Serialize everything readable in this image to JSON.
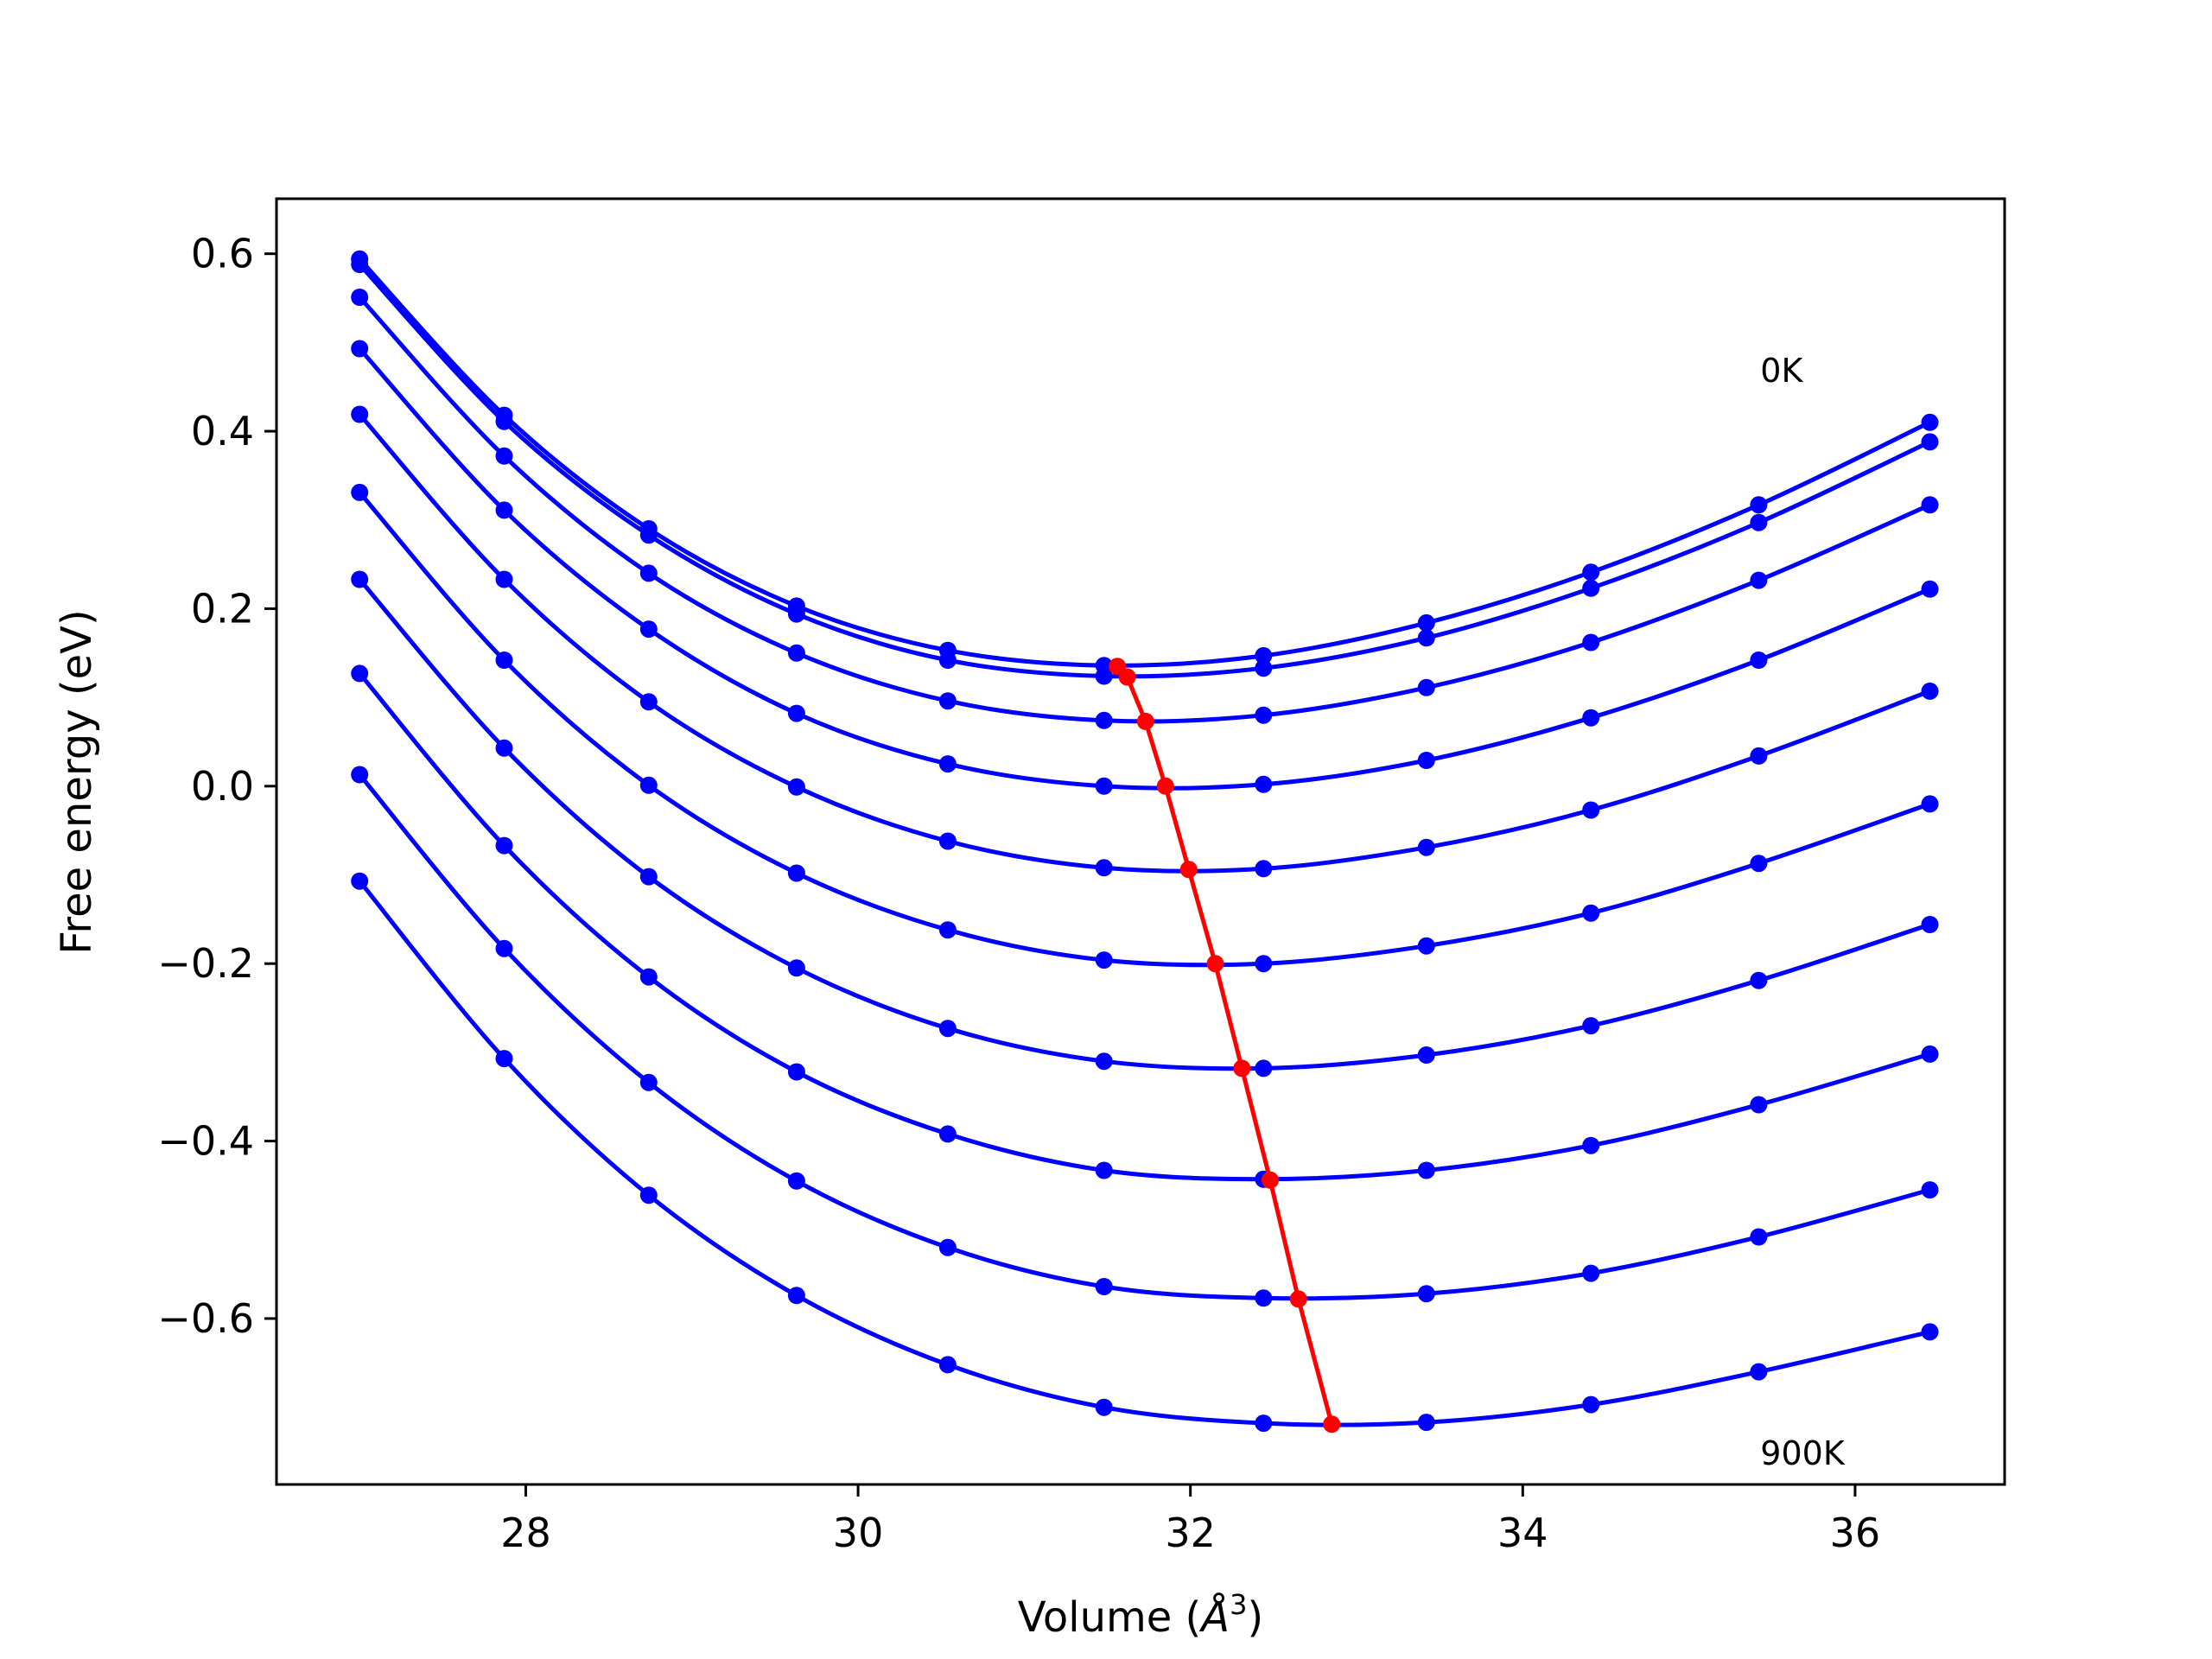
{
  "chart_data": {
    "type": "line",
    "title": "",
    "xlabel_prefix": "Volume (",
    "xlabel_unit": "Å",
    "xlabel_exp": "3",
    "xlabel_suffix": ")",
    "ylabel": "Free energy (eV)",
    "xlim": [
      26.5,
      36.9
    ],
    "ylim": [
      -0.787,
      0.662
    ],
    "xticks": [
      28,
      30,
      32,
      34,
      36
    ],
    "xtick_labels": [
      "28",
      "30",
      "32",
      "34",
      "36"
    ],
    "yticks": [
      -0.6,
      -0.4,
      -0.2,
      0.0,
      0.2,
      0.4,
      0.6
    ],
    "ytick_labels": [
      "−0.6",
      "−0.4",
      "−0.2",
      "0.0",
      "0.2",
      "0.4",
      "0.6"
    ],
    "grid": false,
    "x": [
      27.0,
      27.87,
      28.74,
      29.63,
      30.54,
      31.48,
      32.44,
      33.42,
      34.41,
      35.42,
      36.45
    ],
    "series": [
      {
        "color": "#0000ff",
        "values": [
          0.594,
          0.418,
          0.29,
          0.203,
          0.153,
          0.136,
          0.147,
          0.184,
          0.241,
          0.317,
          0.41
        ]
      },
      {
        "color": "#0000ff",
        "values": [
          0.588,
          0.411,
          0.283,
          0.194,
          0.142,
          0.124,
          0.133,
          0.167,
          0.223,
          0.297,
          0.388
        ]
      },
      {
        "color": "#0000ff",
        "values": [
          0.551,
          0.372,
          0.24,
          0.15,
          0.096,
          0.074,
          0.08,
          0.111,
          0.162,
          0.232,
          0.317
        ]
      },
      {
        "color": "#0000ff",
        "values": [
          0.493,
          0.311,
          0.177,
          0.082,
          0.025,
          0.0,
          0.002,
          0.029,
          0.077,
          0.142,
          0.222
        ]
      },
      {
        "color": "#0000ff",
        "values": [
          0.419,
          0.233,
          0.095,
          -0.001,
          -0.062,
          -0.092,
          -0.093,
          -0.069,
          -0.027,
          0.034,
          0.107
        ]
      },
      {
        "color": "#0000ff",
        "values": [
          0.331,
          0.142,
          0.001,
          -0.098,
          -0.162,
          -0.196,
          -0.2,
          -0.18,
          -0.143,
          -0.087,
          -0.02
        ]
      },
      {
        "color": "#0000ff",
        "values": [
          0.233,
          0.043,
          -0.102,
          -0.205,
          -0.273,
          -0.31,
          -0.318,
          -0.303,
          -0.27,
          -0.219,
          -0.156
        ]
      },
      {
        "color": "#0000ff",
        "values": [
          0.127,
          -0.067,
          -0.215,
          -0.322,
          -0.392,
          -0.433,
          -0.443,
          -0.433,
          -0.405,
          -0.359,
          -0.302
        ]
      },
      {
        "color": "#0000ff",
        "values": [
          0.013,
          -0.183,
          -0.334,
          -0.445,
          -0.52,
          -0.564,
          -0.577,
          -0.572,
          -0.549,
          -0.508,
          -0.455
        ]
      },
      {
        "color": "#0000ff",
        "values": [
          -0.107,
          -0.307,
          -0.461,
          -0.574,
          -0.652,
          -0.7,
          -0.718,
          -0.717,
          -0.697,
          -0.66,
          -0.615
        ]
      }
    ],
    "minima": {
      "color": "#ff0000",
      "x": [
        31.56,
        31.62,
        31.73,
        31.85,
        31.99,
        32.15,
        32.31,
        32.48,
        32.65,
        32.85
      ],
      "y": [
        0.135,
        0.123,
        0.073,
        0.0,
        -0.094,
        -0.2,
        -0.318,
        -0.444,
        -0.578,
        -0.719
      ]
    },
    "annotations": [
      {
        "text": "0K",
        "x": 35.43,
        "y": 0.468
      },
      {
        "text": "900K",
        "x": 35.43,
        "y": -0.752
      }
    ]
  }
}
